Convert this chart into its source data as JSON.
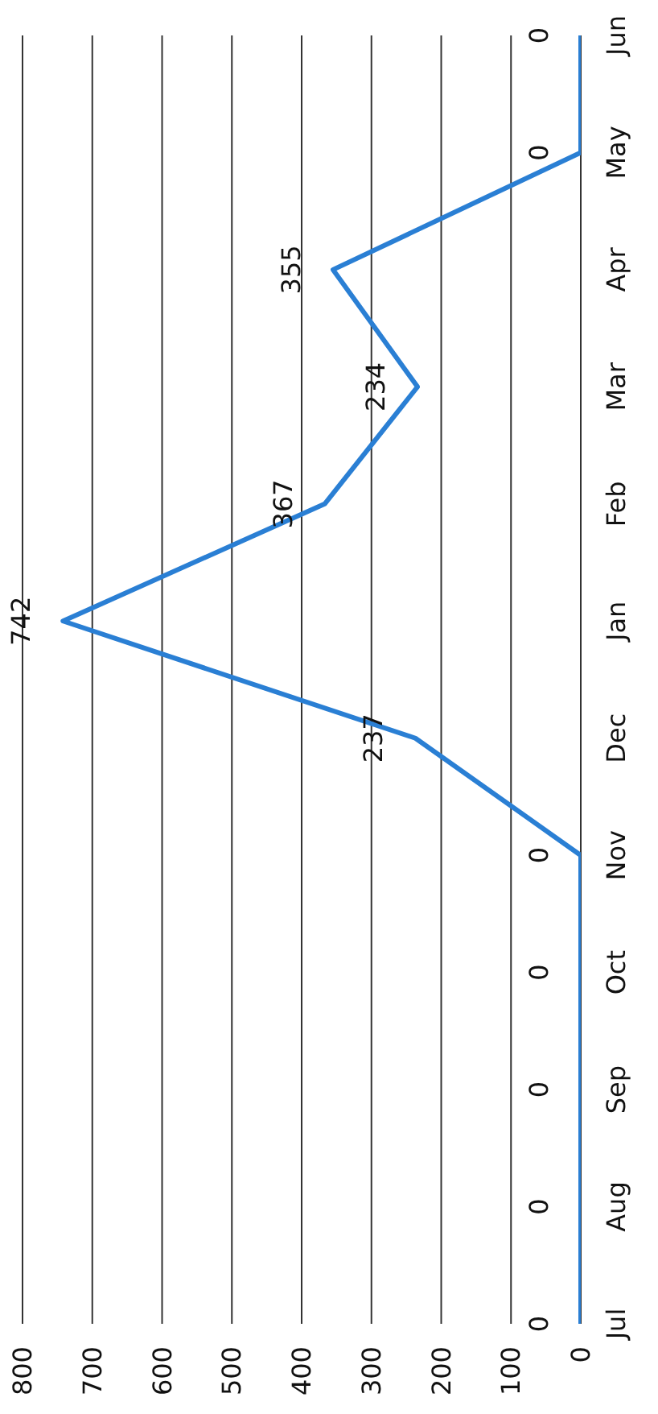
{
  "chart_data": {
    "type": "line",
    "orientation": "horizontal",
    "categories": [
      "Jun",
      "May",
      "Apr",
      "Mar",
      "Feb",
      "Jan",
      "Dec",
      "Nov",
      "Oct",
      "Sep",
      "Aug",
      "Jul"
    ],
    "series": [
      {
        "color": "#2a7fd4",
        "values": [
          0,
          0,
          355,
          234,
          367,
          742,
          237,
          0,
          0,
          0,
          0,
          0
        ]
      }
    ],
    "xlim": [
      800,
      0
    ],
    "xticks": [
      0,
      100,
      200,
      300,
      400,
      500,
      600,
      700,
      800
    ],
    "grid": "x",
    "data_labels": true,
    "marker": "none",
    "line_style": "solid"
  }
}
